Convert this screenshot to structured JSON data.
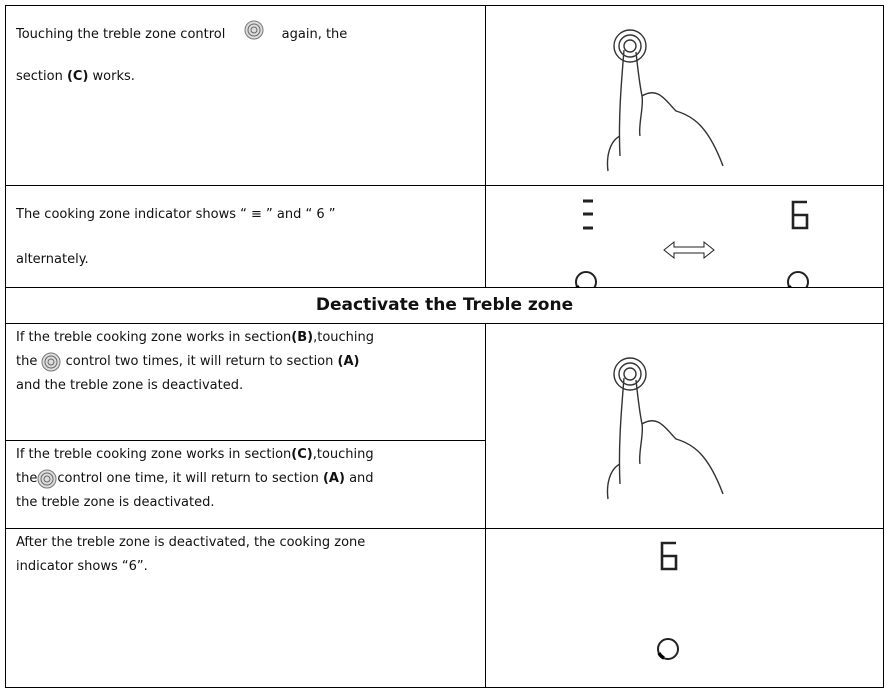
{
  "rows": [
    {
      "text": [
        "Touching the treble zone control",
        "again, the",
        "section",
        "(C)",
        "works."
      ]
    },
    {
      "text": [
        "The cooking zone indicator shows “ ≡ ” and “ 6 ”",
        "alternately."
      ]
    },
    {
      "heading": "Deactivate the Treble zone"
    },
    {
      "text": [
        "If the treble cooking zone works in section",
        "(B)",
        ",touching",
        "the",
        "control two times, it will return to section",
        "(A)",
        "and the treble zone is deactivated."
      ]
    },
    {
      "text": [
        "If the treble cooking zone works in section",
        "(C)",
        ",touching",
        "the",
        "control one time, it will return to section",
        "(A)",
        "and",
        "the treble zone is deactivated."
      ]
    },
    {
      "text": [
        "After the treble zone is deactivated, the cooking zone",
        "indicator shows “6”."
      ]
    }
  ]
}
